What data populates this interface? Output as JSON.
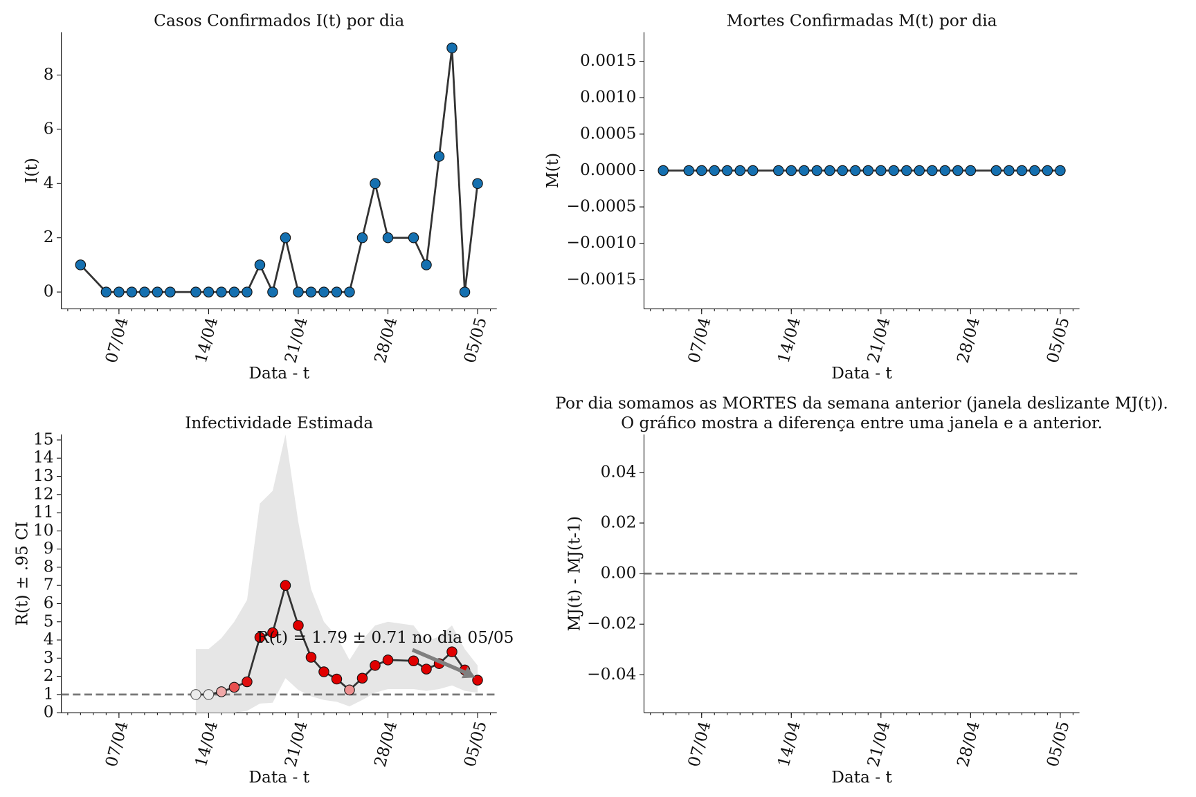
{
  "chart_data": [
    {
      "type": "line",
      "title": "Casos Confirmados I(t) por dia",
      "xlabel": "Data - t",
      "ylabel": "I(t)",
      "x": [
        "04/04",
        "06/04",
        "07/04",
        "08/04",
        "09/04",
        "10/04",
        "11/04",
        "13/04",
        "14/04",
        "15/04",
        "16/04",
        "17/04",
        "18/04",
        "19/04",
        "20/04",
        "21/04",
        "22/04",
        "23/04",
        "24/04",
        "25/04",
        "26/04",
        "27/04",
        "28/04",
        "30/04",
        "01/05",
        "02/05",
        "03/05",
        "04/05",
        "05/05"
      ],
      "values": [
        1,
        0,
        0,
        0,
        0,
        0,
        0,
        0,
        0,
        0,
        0,
        0,
        1,
        0,
        2,
        0,
        0,
        0,
        0,
        0,
        2,
        4,
        2,
        2,
        1,
        5,
        9,
        0,
        4
      ],
      "color": "#333333",
      "marker_color": "#1570b0",
      "xlim": [
        "04/04",
        "05/05"
      ],
      "xticks": [
        "07/04",
        "14/04",
        "21/04",
        "28/04",
        "05/05"
      ],
      "ylim": [
        -0.62,
        9.58
      ],
      "yticks": [
        0,
        2,
        4,
        6,
        8
      ]
    },
    {
      "type": "line",
      "title": "Mortes Confirmadas M(t) por dia",
      "xlabel": "Data - t",
      "ylabel": "M(t)",
      "x": [
        "04/04",
        "06/04",
        "07/04",
        "08/04",
        "09/04",
        "10/04",
        "11/04",
        "13/04",
        "14/04",
        "15/04",
        "16/04",
        "17/04",
        "18/04",
        "19/04",
        "20/04",
        "21/04",
        "22/04",
        "23/04",
        "24/04",
        "25/04",
        "26/04",
        "27/04",
        "28/04",
        "30/04",
        "01/05",
        "02/05",
        "03/05",
        "04/05",
        "05/05"
      ],
      "values": [
        0,
        0,
        0,
        0,
        0,
        0,
        0,
        0,
        0,
        0,
        0,
        0,
        0,
        0,
        0,
        0,
        0,
        0,
        0,
        0,
        0,
        0,
        0,
        0,
        0,
        0,
        0,
        0,
        0
      ],
      "color": "#333333",
      "marker_color": "#1570b0",
      "xlim": [
        "04/04",
        "05/05"
      ],
      "xticks": [
        "07/04",
        "14/04",
        "21/04",
        "28/04",
        "05/05"
      ],
      "ylim": [
        -0.0019,
        0.0019
      ],
      "yticks": [
        {
          "value": -0.0015,
          "label": "−0.0015"
        },
        {
          "value": -0.001,
          "label": "−0.0010"
        },
        {
          "value": -0.0005,
          "label": "−0.0005"
        },
        {
          "value": 0,
          "label": "0.0000"
        },
        {
          "value": 0.0005,
          "label": "0.0005"
        },
        {
          "value": 0.001,
          "label": "0.0010"
        },
        {
          "value": 0.0015,
          "label": "0.0015"
        }
      ]
    },
    {
      "type": "line",
      "title": "Infectividade Estimada",
      "xlabel": "Data - t",
      "ylabel": "R(t) ± .95 CI",
      "x": [
        "13/04",
        "14/04",
        "15/04",
        "16/04",
        "17/04",
        "18/04",
        "19/04",
        "20/04",
        "21/04",
        "22/04",
        "23/04",
        "24/04",
        "25/04",
        "26/04",
        "27/04",
        "28/04",
        "30/04",
        "01/05",
        "02/05",
        "03/05",
        "04/05",
        "05/05"
      ],
      "values": [
        1,
        1,
        1.15,
        1.4,
        1.7,
        4.15,
        4.4,
        7.0,
        4.8,
        3.05,
        2.25,
        1.85,
        1.25,
        1.9,
        2.6,
        2.9,
        2.85,
        2.4,
        2.7,
        3.35,
        2.35,
        1.79
      ],
      "ci_upper": [
        3.5,
        3.5,
        4.1,
        5.0,
        6.2,
        11.5,
        12.2,
        15.3,
        10.5,
        6.8,
        5.0,
        4.2,
        2.9,
        4.0,
        4.8,
        5.0,
        4.8,
        3.9,
        4.2,
        4.8,
        3.5,
        2.6
      ],
      "ci_lower": [
        0,
        0,
        0,
        0,
        0.1,
        0.5,
        0.55,
        1.9,
        1.25,
        0.9,
        0.7,
        0.6,
        0.35,
        0.7,
        1.1,
        1.3,
        1.3,
        1.2,
        1.3,
        1.5,
        1.2,
        1.1
      ],
      "color": "#333333",
      "point_colors": [
        "#ececec",
        "#ececec",
        "#f0a8a8",
        "#e85050",
        "#e01010",
        "#e00000",
        "#e00000",
        "#e00000",
        "#e00000",
        "#e00000",
        "#e00000",
        "#e00000",
        "#ec8f8f",
        "#e00000",
        "#e00000",
        "#e00000",
        "#e00000",
        "#e00000",
        "#e00000",
        "#e00000",
        "#e00000",
        "#e00000"
      ],
      "hline": 1,
      "annotation": "R(t) = 1.79 ± 0.71 no dia 05/05",
      "xlim": [
        "04/04",
        "05/05"
      ],
      "xticks": [
        "07/04",
        "14/04",
        "21/04",
        "28/04",
        "05/05"
      ],
      "ylim": [
        0,
        15.3
      ],
      "yticks": [
        0,
        1,
        2,
        3,
        4,
        5,
        6,
        7,
        8,
        9,
        10,
        11,
        12,
        13,
        14,
        15
      ]
    },
    {
      "type": "line",
      "title": [
        "Por dia somamos as MORTES da semana anterior (janela deslizante MJ(t)).",
        "O gráfico mostra a diferença entre uma janela e a anterior."
      ],
      "xlabel": "Data - t",
      "ylabel": "MJ(t) - MJ(t-1)",
      "x": [],
      "values": [],
      "hline": 0,
      "xlim": [
        "04/04",
        "05/05"
      ],
      "xticks": [
        "07/04",
        "14/04",
        "21/04",
        "28/04",
        "05/05"
      ],
      "ylim": [
        -0.055,
        0.055
      ],
      "yticks": [
        {
          "value": -0.04,
          "label": "−0.04"
        },
        {
          "value": -0.02,
          "label": "−0.02"
        },
        {
          "value": 0,
          "label": "0.00"
        },
        {
          "value": 0.02,
          "label": "0.02"
        },
        {
          "value": 0.04,
          "label": "0.04"
        }
      ]
    }
  ]
}
